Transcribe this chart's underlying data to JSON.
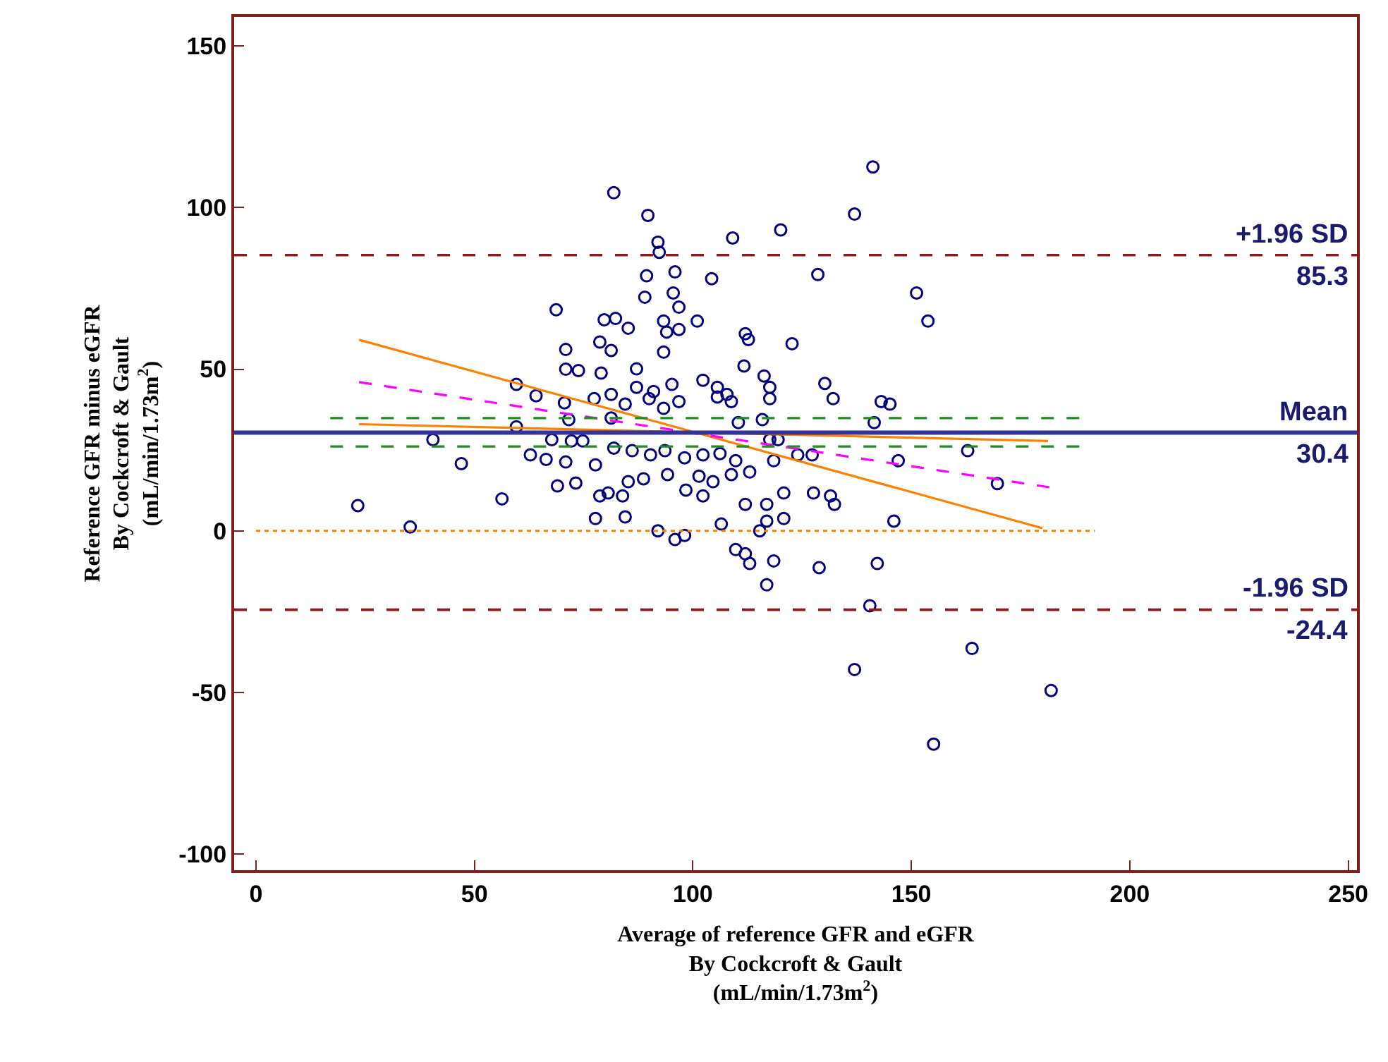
{
  "chart_data": {
    "type": "scatter",
    "xlabel": "Average of reference GFR and eGFR\nBy Cockcroft & Gault\n(mL/min/1.73m$^{2}$)",
    "ylabel": "Reference GFR minus eGFR\nBy Cockcroft & Gault\n(mL/min/1.73m$^{2}$)",
    "xlim": [
      -5,
      252
    ],
    "xticks": [
      0,
      50,
      100,
      150,
      200,
      250
    ],
    "ylim": [
      -105,
      159
    ],
    "yticks": [
      -100,
      -50,
      0,
      50,
      100,
      150
    ],
    "grid": false,
    "series": [
      {
        "marker": "circle",
        "color": "#000080",
        "x": [
          141.2,
          81.9,
          89.7,
          137,
          120.1,
          109.1,
          92,
          92.3,
          128.6,
          89.4,
          95.9,
          104.3,
          89,
          95.5,
          96.8,
          82.3,
          85.2,
          93.3,
          94,
          96.8,
          101,
          93.3,
          87.1,
          81.3,
          112,
          112.7,
          122.7,
          111.7,
          116.3,
          117.6,
          102.3,
          105.6,
          107.8,
          130.2,
          132.1,
          143.1,
          87.1,
          91,
          95.2,
          81.3,
          68.7,
          70.9,
          70.9,
          73.8,
          78.7,
          79.7,
          79,
          59.6,
          64.1,
          70.6,
          77.4,
          59.6,
          40.5,
          47,
          23.3,
          56.3,
          35.3,
          62.8,
          66.4,
          70.9,
          77.7,
          69,
          73.2,
          77.7,
          78.7,
          67.7,
          72.2,
          74.8,
          71.6,
          141.5,
          81.3,
          84.5,
          90,
          93.3,
          96.8,
          105.6,
          108.8,
          117.6,
          115.9,
          110.4,
          117.6,
          119.5,
          81.9,
          86.1,
          90.3,
          93.6,
          98.1,
          102.3,
          106.2,
          109.8,
          118.5,
          124,
          127.3,
          85.2,
          88.7,
          94.2,
          101.4,
          104.6,
          108.8,
          113,
          120.8,
          98.4,
          102.3,
          80.6,
          83.9,
          84.5,
          112,
          116.9,
          120.8,
          106.5,
          116.9,
          127.6,
          131.5,
          132.4,
          92,
          95.9,
          98.1,
          109.8,
          112,
          113,
          118.5,
          116.9,
          128.9,
          142.2,
          140.5,
          115.3,
          151.2,
          153.8,
          145.1,
          162.9,
          147,
          169.7,
          146,
          163.9,
          182,
          155.1,
          137
        ],
        "values": [
          112.6,
          104.6,
          97.6,
          98,
          93.1,
          90.6,
          89.3,
          86.2,
          79.3,
          78.9,
          80.1,
          78,
          72.3,
          73.6,
          69.2,
          65.7,
          62.7,
          64.9,
          61.5,
          62.3,
          64.9,
          55.3,
          50.1,
          55.8,
          61,
          59.2,
          57.9,
          51,
          47.9,
          44.4,
          46.6,
          44.4,
          42.2,
          45.6,
          40.9,
          40,
          44.4,
          43.1,
          45.3,
          42.2,
          68.4,
          56.1,
          50,
          49.6,
          58.4,
          65.3,
          48.8,
          45.3,
          41.8,
          39.6,
          40.9,
          32.2,
          28.2,
          20.8,
          7.8,
          9.9,
          1.2,
          23.5,
          22.1,
          21.3,
          20.4,
          13.9,
          14.8,
          3.8,
          10.8,
          28.2,
          27.8,
          27.8,
          34.4,
          33.5,
          34.9,
          39.2,
          40.9,
          37.9,
          40,
          41.4,
          40,
          40.9,
          34.4,
          33.5,
          28.2,
          28.2,
          25.6,
          24.8,
          23.5,
          24.8,
          22.6,
          23.5,
          23.9,
          21.7,
          21.7,
          23.5,
          23.5,
          15.2,
          16.1,
          17.4,
          16.9,
          15.2,
          17.4,
          18.2,
          11.7,
          12.6,
          10.8,
          11.7,
          10.8,
          4.3,
          8.2,
          8.2,
          3.8,
          2.1,
          3,
          11.7,
          10.8,
          8.2,
          0,
          -2.7,
          -1.4,
          -5.8,
          -7.1,
          -10.1,
          -9.3,
          -16.7,
          -11.4,
          -10.1,
          -23.2,
          0,
          73.6,
          64.9,
          39.2,
          24.8,
          21.7,
          14.6,
          3,
          -36.4,
          -49.4,
          -66,
          -42.9
        ]
      },
      {
        "type": "line",
        "color": "#ff8000",
        "line_style": "solid",
        "x": [
          23.6,
          180
        ],
        "values": [
          59.1,
          0.8
        ]
      },
      {
        "type": "line",
        "color": "#ff00ff",
        "line_style": "dashed",
        "x": [
          23.6,
          182
        ],
        "values": [
          46,
          13.4
        ]
      },
      {
        "type": "line",
        "color": "#ff8000",
        "line_style": "solid",
        "x": [
          23.6,
          181.3
        ],
        "values": [
          33,
          27.8
        ]
      },
      {
        "type": "line",
        "color": "#228b22",
        "line_style": "dashed",
        "x": [
          17,
          189
        ],
        "values": [
          34.9,
          34.9
        ]
      },
      {
        "type": "line",
        "color": "#228b22",
        "line_style": "dashed",
        "x": [
          17,
          189
        ],
        "values": [
          26.1,
          26.1
        ]
      },
      {
        "type": "line",
        "color": "#ff8000",
        "line_style": "dotted",
        "x": [
          0,
          192
        ],
        "values": [
          0,
          0
        ]
      }
    ],
    "ref_lines": [
      {
        "axis": "y",
        "value": 85.3,
        "label": "+1.96 SD",
        "color": "#8b1a1a",
        "line_style": "dashed"
      },
      {
        "axis": "y",
        "value": 30.4,
        "label": "Mean",
        "color": "#333399",
        "line_style": "solid"
      },
      {
        "axis": "y",
        "value": -24.4,
        "label": "-1.96 SD",
        "color": "#8b1a1a",
        "line_style": "dashed"
      }
    ],
    "annotations": [
      {
        "text": "85.3",
        "y": 85.3
      },
      {
        "text": "30.4",
        "y": 30.4
      },
      {
        "text": "-24.4",
        "y": -24.4
      }
    ]
  }
}
